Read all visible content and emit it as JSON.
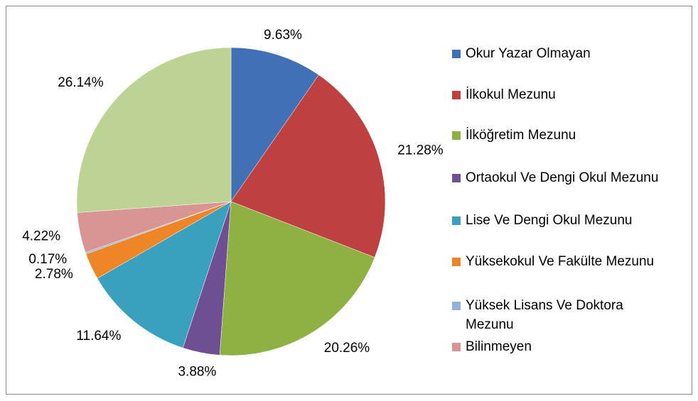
{
  "chart_data": {
    "type": "pie",
    "categories": [
      "Okur Yazar Olmayan",
      "İlkokul Mezunu",
      "İlköğretim Mezunu",
      "Ortaokul Ve Dengi Okul Mezunu",
      "Lise Ve Dengi Okul Mezunu",
      "Yüksekokul Ve Fakülte Mezunu",
      "Yüksek Lisans Ve Doktora Mezunu",
      "Bilinmeyen",
      null
    ],
    "values": [
      9.63,
      21.28,
      20.26,
      3.88,
      11.64,
      2.78,
      0.17,
      4.22,
      26.14
    ],
    "value_labels": [
      "9.63%",
      "21.28%",
      "20.26%",
      "3.88%",
      "11.64%",
      "2.78%",
      "0.17%",
      "4.22%",
      "26.14%"
    ],
    "colors": [
      "#4170b5",
      "#bf4040",
      "#8fb043",
      "#6e4f94",
      "#3aa0bd",
      "#ee8628",
      "#94b3d9",
      "#d99593",
      "#bcd394"
    ],
    "legend": "right"
  }
}
